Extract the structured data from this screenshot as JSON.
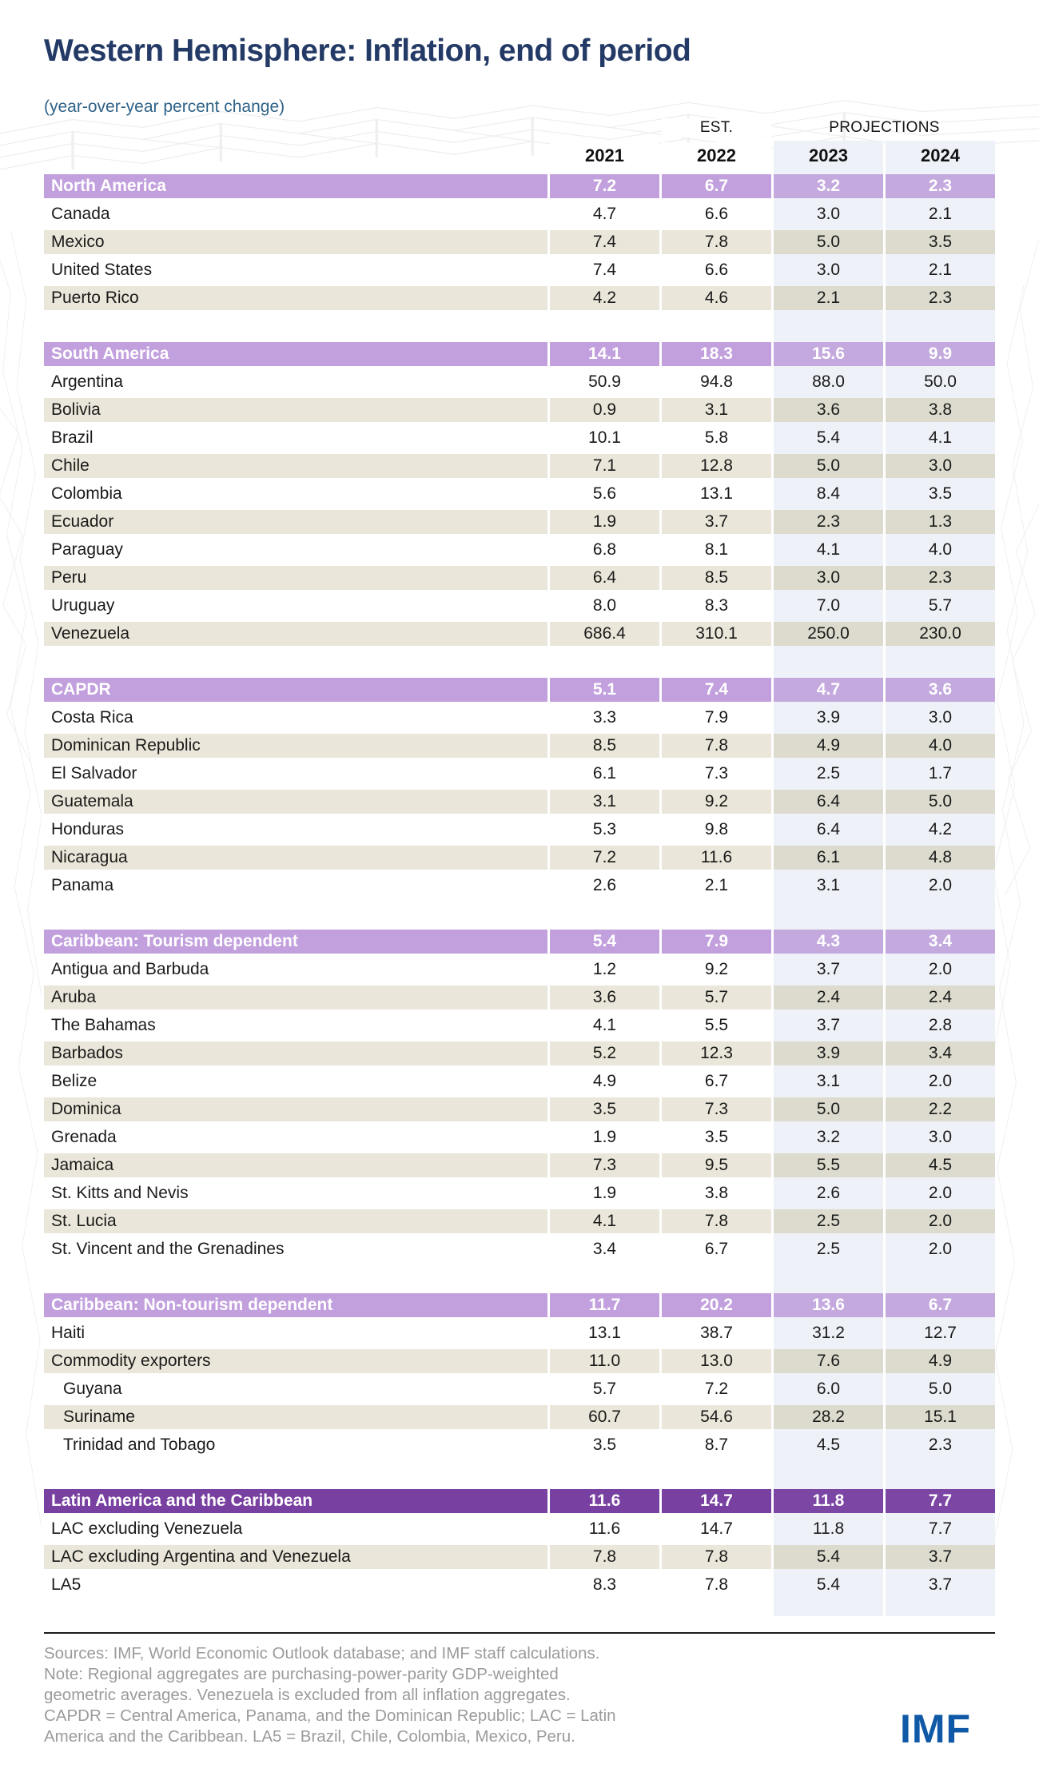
{
  "title": "Western Hemisphere: Inflation, end of period",
  "subtitle": "(year-over-year percent change)",
  "columns": {
    "est_label": "EST.",
    "projections_label": "PROJECTIONS",
    "years": [
      "2021",
      "2022",
      "2023",
      "2024"
    ]
  },
  "chart_data": {
    "type": "table",
    "title": "Western Hemisphere: Inflation, end of period",
    "unit": "year-over-year percent change",
    "columns": [
      "2021",
      "2022",
      "2023",
      "2024"
    ],
    "column_notes": {
      "2022": "EST.",
      "2023": "PROJECTIONS",
      "2024": "PROJECTIONS"
    },
    "groups": [
      {
        "label": "North America",
        "tone": "light",
        "values": [
          "7.2",
          "6.7",
          "3.2",
          "2.3"
        ],
        "rows": [
          {
            "label": "Canada",
            "values": [
              "4.7",
              "6.6",
              "3.0",
              "2.1"
            ]
          },
          {
            "label": "Mexico",
            "values": [
              "7.4",
              "7.8",
              "5.0",
              "3.5"
            ]
          },
          {
            "label": "United States",
            "values": [
              "7.4",
              "6.6",
              "3.0",
              "2.1"
            ]
          },
          {
            "label": "Puerto Rico",
            "values": [
              "4.2",
              "4.6",
              "2.1",
              "2.3"
            ]
          }
        ]
      },
      {
        "label": "South America",
        "tone": "light",
        "values": [
          "14.1",
          "18.3",
          "15.6",
          "9.9"
        ],
        "rows": [
          {
            "label": "Argentina",
            "values": [
              "50.9",
              "94.8",
              "88.0",
              "50.0"
            ]
          },
          {
            "label": "Bolivia",
            "values": [
              "0.9",
              "3.1",
              "3.6",
              "3.8"
            ]
          },
          {
            "label": "Brazil",
            "values": [
              "10.1",
              "5.8",
              "5.4",
              "4.1"
            ]
          },
          {
            "label": "Chile",
            "values": [
              "7.1",
              "12.8",
              "5.0",
              "3.0"
            ]
          },
          {
            "label": "Colombia",
            "values": [
              "5.6",
              "13.1",
              "8.4",
              "3.5"
            ]
          },
          {
            "label": "Ecuador",
            "values": [
              "1.9",
              "3.7",
              "2.3",
              "1.3"
            ]
          },
          {
            "label": "Paraguay",
            "values": [
              "6.8",
              "8.1",
              "4.1",
              "4.0"
            ]
          },
          {
            "label": "Peru",
            "values": [
              "6.4",
              "8.5",
              "3.0",
              "2.3"
            ]
          },
          {
            "label": "Uruguay",
            "values": [
              "8.0",
              "8.3",
              "7.0",
              "5.7"
            ]
          },
          {
            "label": "Venezuela",
            "values": [
              "686.4",
              "310.1",
              "250.0",
              "230.0"
            ]
          }
        ]
      },
      {
        "label": "CAPDR",
        "tone": "light",
        "values": [
          "5.1",
          "7.4",
          "4.7",
          "3.6"
        ],
        "rows": [
          {
            "label": "Costa Rica",
            "values": [
              "3.3",
              "7.9",
              "3.9",
              "3.0"
            ]
          },
          {
            "label": "Dominican Republic",
            "values": [
              "8.5",
              "7.8",
              "4.9",
              "4.0"
            ]
          },
          {
            "label": "El Salvador",
            "values": [
              "6.1",
              "7.3",
              "2.5",
              "1.7"
            ]
          },
          {
            "label": "Guatemala",
            "values": [
              "3.1",
              "9.2",
              "6.4",
              "5.0"
            ]
          },
          {
            "label": "Honduras",
            "values": [
              "5.3",
              "9.8",
              "6.4",
              "4.2"
            ]
          },
          {
            "label": "Nicaragua",
            "values": [
              "7.2",
              "11.6",
              "6.1",
              "4.8"
            ]
          },
          {
            "label": "Panama",
            "values": [
              "2.6",
              "2.1",
              "3.1",
              "2.0"
            ]
          }
        ]
      },
      {
        "label": "Caribbean: Tourism dependent",
        "tone": "light",
        "values": [
          "5.4",
          "7.9",
          "4.3",
          "3.4"
        ],
        "rows": [
          {
            "label": "Antigua and Barbuda",
            "values": [
              "1.2",
              "9.2",
              "3.7",
              "2.0"
            ]
          },
          {
            "label": "Aruba",
            "values": [
              "3.6",
              "5.7",
              "2.4",
              "2.4"
            ]
          },
          {
            "label": "The Bahamas",
            "values": [
              "4.1",
              "5.5",
              "3.7",
              "2.8"
            ]
          },
          {
            "label": "Barbados",
            "values": [
              "5.2",
              "12.3",
              "3.9",
              "3.4"
            ]
          },
          {
            "label": "Belize",
            "values": [
              "4.9",
              "6.7",
              "3.1",
              "2.0"
            ]
          },
          {
            "label": "Dominica",
            "values": [
              "3.5",
              "7.3",
              "5.0",
              "2.2"
            ]
          },
          {
            "label": "Grenada",
            "values": [
              "1.9",
              "3.5",
              "3.2",
              "3.0"
            ]
          },
          {
            "label": "Jamaica",
            "values": [
              "7.3",
              "9.5",
              "5.5",
              "4.5"
            ]
          },
          {
            "label": "St. Kitts and Nevis",
            "values": [
              "1.9",
              "3.8",
              "2.6",
              "2.0"
            ]
          },
          {
            "label": "St. Lucia",
            "values": [
              "4.1",
              "7.8",
              "2.5",
              "2.0"
            ]
          },
          {
            "label": "St. Vincent and the Grenadines",
            "values": [
              "3.4",
              "6.7",
              "2.5",
              "2.0"
            ]
          }
        ]
      },
      {
        "label": "Caribbean: Non-tourism dependent",
        "tone": "light",
        "values": [
          "11.7",
          "20.2",
          "13.6",
          "6.7"
        ],
        "rows": [
          {
            "label": "Haiti",
            "values": [
              "13.1",
              "38.7",
              "31.2",
              "12.7"
            ]
          },
          {
            "label": "Commodity exporters",
            "values": [
              "11.0",
              "13.0",
              "7.6",
              "4.9"
            ]
          },
          {
            "label": "Guyana",
            "indent": true,
            "values": [
              "5.7",
              "7.2",
              "6.0",
              "5.0"
            ]
          },
          {
            "label": "Suriname",
            "indent": true,
            "values": [
              "60.7",
              "54.6",
              "28.2",
              "15.1"
            ]
          },
          {
            "label": "Trinidad and Tobago",
            "indent": true,
            "values": [
              "3.5",
              "8.7",
              "4.5",
              "2.3"
            ]
          }
        ]
      },
      {
        "label": "Latin America and the Caribbean",
        "tone": "dark",
        "values": [
          "11.6",
          "14.7",
          "11.8",
          "7.7"
        ],
        "rows": [
          {
            "label": "LAC excluding Venezuela",
            "values": [
              "11.6",
              "14.7",
              "11.8",
              "7.7"
            ]
          },
          {
            "label": "LAC excluding Argentina and Venezuela",
            "values": [
              "7.8",
              "7.8",
              "5.4",
              "3.7"
            ]
          },
          {
            "label": "LA5",
            "values": [
              "8.3",
              "7.8",
              "5.4",
              "3.7"
            ]
          }
        ]
      }
    ]
  },
  "footer": {
    "lines": [
      "Sources: IMF, World Economic Outlook database; and IMF staff calculations.",
      "Note: Regional aggregates are purchasing-power-parity GDP-weighted",
      "geometric averages. Venezuela is excluded from all inflation aggregates.",
      "CAPDR = Central America, Panama, and the Dominican Republic; LAC = Latin",
      "America and the Caribbean. LA5 = Brazil, Chile, Colombia, Mexico, Peru."
    ]
  },
  "logo": "IMF",
  "colors": {
    "title_navy": "#243a66",
    "subtitle_blue": "#2f6287",
    "section_purple": "#c2a0de",
    "lac_purple": "#7840a0",
    "row_beige": "#eae6d9",
    "row_beige_projection": "#dcdbce",
    "projection_blue": "#eef1f7",
    "imf_blue": "#0f59a7",
    "note_gray": "#9b9b9b"
  }
}
